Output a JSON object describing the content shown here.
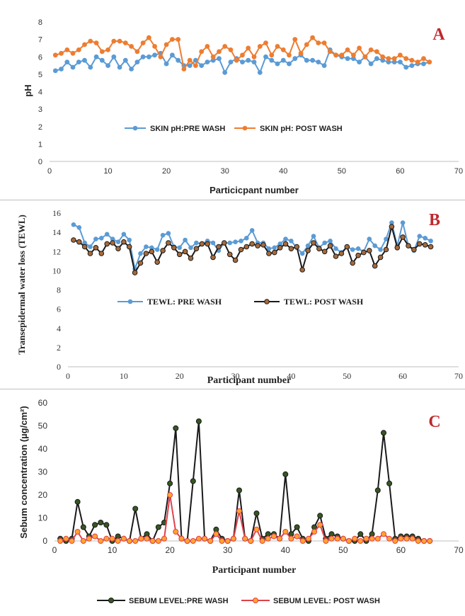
{
  "chart_data": [
    {
      "type": "line",
      "panel_label": "A",
      "xlabel": "Particicpant number",
      "ylabel": "pH",
      "xlim": [
        0,
        70
      ],
      "ylim": [
        0,
        8
      ],
      "xticks": [
        "0",
        "10",
        "20",
        "30",
        "40",
        "50",
        "60",
        "70"
      ],
      "yticks": [
        "0",
        "1",
        "2",
        "3",
        "4",
        "5",
        "6",
        "7",
        "8"
      ],
      "legend_position": "middle-center",
      "grid": false,
      "x": [
        1,
        2,
        3,
        4,
        5,
        6,
        7,
        8,
        9,
        10,
        11,
        12,
        13,
        14,
        15,
        16,
        17,
        18,
        19,
        20,
        21,
        22,
        23,
        24,
        25,
        26,
        27,
        28,
        29,
        30,
        31,
        32,
        33,
        34,
        35,
        36,
        37,
        38,
        39,
        40,
        41,
        42,
        43,
        44,
        45,
        46,
        47,
        48,
        49,
        50,
        51,
        52,
        53,
        54,
        55,
        56,
        57,
        58,
        59,
        60,
        61,
        62,
        63,
        64,
        65
      ],
      "series": [
        {
          "name": "SKIN pH:PRE WASH",
          "color": "#5b9bd5",
          "values": [
            5.2,
            5.3,
            5.7,
            5.4,
            5.7,
            5.8,
            5.4,
            6.0,
            5.8,
            5.5,
            6.0,
            5.4,
            5.8,
            5.3,
            5.7,
            6.0,
            6.0,
            6.1,
            6.2,
            5.6,
            6.1,
            5.8,
            5.5,
            5.5,
            5.8,
            5.5,
            5.7,
            5.8,
            5.9,
            5.1,
            5.7,
            5.9,
            5.7,
            5.8,
            5.7,
            5.1,
            6.0,
            5.8,
            5.6,
            5.8,
            5.6,
            5.9,
            6.1,
            5.8,
            5.8,
            5.7,
            5.5,
            6.4,
            6.1,
            6.0,
            5.9,
            5.9,
            5.7,
            6.0,
            5.6,
            5.9,
            5.8,
            5.7,
            5.7,
            5.7,
            5.4,
            5.5,
            5.6,
            5.6,
            5.7
          ]
        },
        {
          "name": "SKIN pH: POST WASH",
          "color": "#ed7d31",
          "values": [
            6.1,
            6.2,
            6.4,
            6.2,
            6.4,
            6.7,
            6.9,
            6.8,
            6.3,
            6.4,
            6.9,
            6.9,
            6.8,
            6.6,
            6.3,
            6.8,
            7.1,
            6.6,
            6.0,
            6.7,
            7.0,
            7.0,
            5.3,
            5.8,
            5.5,
            6.3,
            6.6,
            6.0,
            6.3,
            6.6,
            6.4,
            5.8,
            6.1,
            6.5,
            6.0,
            6.6,
            6.8,
            6.1,
            6.6,
            6.4,
            6.1,
            7.0,
            6.2,
            6.7,
            7.1,
            6.8,
            6.8,
            6.3,
            6.1,
            6.1,
            6.4,
            6.1,
            6.5,
            6.0,
            6.4,
            6.3,
            6.0,
            5.9,
            5.9,
            6.1,
            5.9,
            5.8,
            5.7,
            5.9,
            5.7
          ]
        }
      ]
    },
    {
      "type": "line",
      "panel_label": "B",
      "xlabel": "Participant number",
      "ylabel": "Transepidermal water loss (TEWL)",
      "xlim": [
        0,
        70
      ],
      "ylim": [
        0,
        16
      ],
      "xticks": [
        "0",
        "10",
        "20",
        "30",
        "40",
        "50",
        "60",
        "70"
      ],
      "yticks": [
        "0",
        "2",
        "4",
        "6",
        "8",
        "10",
        "12",
        "14",
        "16"
      ],
      "legend_position": "lower-center",
      "grid": false,
      "x": [
        1,
        2,
        3,
        4,
        5,
        6,
        7,
        8,
        9,
        10,
        11,
        12,
        13,
        14,
        15,
        16,
        17,
        18,
        19,
        20,
        21,
        22,
        23,
        24,
        25,
        26,
        27,
        28,
        29,
        30,
        31,
        32,
        33,
        34,
        35,
        36,
        37,
        38,
        39,
        40,
        41,
        42,
        43,
        44,
        45,
        46,
        47,
        48,
        49,
        50,
        51,
        52,
        53,
        54,
        55,
        56,
        57,
        58,
        59,
        60,
        61,
        62,
        63,
        64,
        65
      ],
      "series": [
        {
          "name": "TEWL: PRE WASH",
          "color": "#5b9bd5",
          "values": [
            14.8,
            14.5,
            12.9,
            12.5,
            13.3,
            13.4,
            13.8,
            13.3,
            13.0,
            13.8,
            13.2,
            10.2,
            11.8,
            12.5,
            12.4,
            12.2,
            13.7,
            13.9,
            12.5,
            12.4,
            13.2,
            12.4,
            12.9,
            12.8,
            13.1,
            12.9,
            12.1,
            12.9,
            12.9,
            13.0,
            13.1,
            13.4,
            14.2,
            12.9,
            12.9,
            12.3,
            12.4,
            12.8,
            13.3,
            13.1,
            12.4,
            11.8,
            12.6,
            13.6,
            12.4,
            12.9,
            13.1,
            12.3,
            11.9,
            12.5,
            12.2,
            12.3,
            12.0,
            13.3,
            12.6,
            12.2,
            13.3,
            15.0,
            12.6,
            15.0,
            12.6,
            12.1,
            13.6,
            13.4,
            13.1
          ]
        },
        {
          "name": "TEWL: POST WASH",
          "color": "#1a1a1a",
          "values": [
            13.2,
            13.0,
            12.5,
            11.8,
            12.4,
            11.8,
            12.8,
            12.9,
            12.3,
            13.0,
            12.5,
            9.8,
            10.8,
            11.8,
            12.0,
            10.9,
            12.1,
            12.9,
            12.4,
            11.7,
            12.0,
            11.3,
            12.3,
            12.8,
            12.8,
            11.4,
            12.5,
            12.9,
            11.7,
            11.1,
            12.2,
            12.5,
            12.8,
            12.6,
            12.7,
            11.8,
            11.9,
            12.4,
            12.8,
            12.3,
            12.5,
            10.1,
            12.1,
            12.9,
            12.3,
            12.0,
            12.6,
            11.5,
            11.8,
            12.5,
            10.8,
            11.6,
            11.9,
            12.1,
            10.5,
            11.4,
            12.2,
            14.6,
            12.4,
            13.5,
            12.6,
            12.2,
            12.8,
            12.7,
            12.5
          ]
        }
      ]
    },
    {
      "type": "line",
      "panel_label": "C",
      "xlabel": "Participant number",
      "ylabel": "Sebum concentration (µg/cm²)",
      "xlim": [
        0,
        70
      ],
      "ylim": [
        0,
        60
      ],
      "xticks": [
        "0",
        "10",
        "20",
        "30",
        "40",
        "50",
        "60",
        "70"
      ],
      "yticks": [
        "0",
        "10",
        "20",
        "30",
        "40",
        "50",
        "60"
      ],
      "legend_position": "bottom",
      "grid": false,
      "x": [
        1,
        2,
        3,
        4,
        5,
        6,
        7,
        8,
        9,
        10,
        11,
        12,
        13,
        14,
        15,
        16,
        17,
        18,
        19,
        20,
        21,
        22,
        23,
        24,
        25,
        26,
        27,
        28,
        29,
        30,
        31,
        32,
        33,
        34,
        35,
        36,
        37,
        38,
        39,
        40,
        41,
        42,
        43,
        44,
        45,
        46,
        47,
        48,
        49,
        50,
        51,
        52,
        53,
        54,
        55,
        56,
        57,
        58,
        59,
        60,
        61,
        62,
        63,
        64,
        65
      ],
      "series": [
        {
          "name": "SEBUM LEVEL:PRE WASH",
          "color": "#1a1a1a",
          "marker_color": "#375623",
          "values": [
            1,
            0,
            1,
            17,
            6,
            2,
            7,
            8,
            7,
            0,
            2,
            1,
            0,
            14,
            1,
            3,
            0,
            6,
            8,
            25,
            49,
            1,
            0,
            26,
            52,
            1,
            0,
            5,
            1,
            0,
            1,
            22,
            1,
            0,
            12,
            1,
            3,
            3,
            1,
            29,
            3,
            6,
            1,
            0,
            6,
            11,
            1,
            3,
            2,
            1,
            0,
            0,
            3,
            0,
            3,
            22,
            47,
            25,
            1,
            2,
            2,
            2,
            1,
            0,
            0
          ]
        },
        {
          "name": "SEBUM LEVEL: POST WASH",
          "color": "#e0414b",
          "marker_color": "#ffa42b",
          "values": [
            0,
            1,
            0,
            4,
            0,
            1,
            2,
            0,
            1,
            1,
            0,
            1,
            0,
            0,
            1,
            1,
            0,
            0,
            1,
            20,
            4,
            1,
            0,
            0,
            1,
            1,
            0,
            3,
            0,
            0,
            1,
            13,
            1,
            0,
            5,
            0,
            1,
            2,
            1,
            4,
            1,
            2,
            0,
            1,
            4,
            7,
            0,
            1,
            1,
            1,
            0,
            1,
            0,
            1,
            1,
            1,
            3,
            1,
            0,
            1,
            1,
            1,
            0,
            0,
            0
          ]
        }
      ]
    }
  ]
}
